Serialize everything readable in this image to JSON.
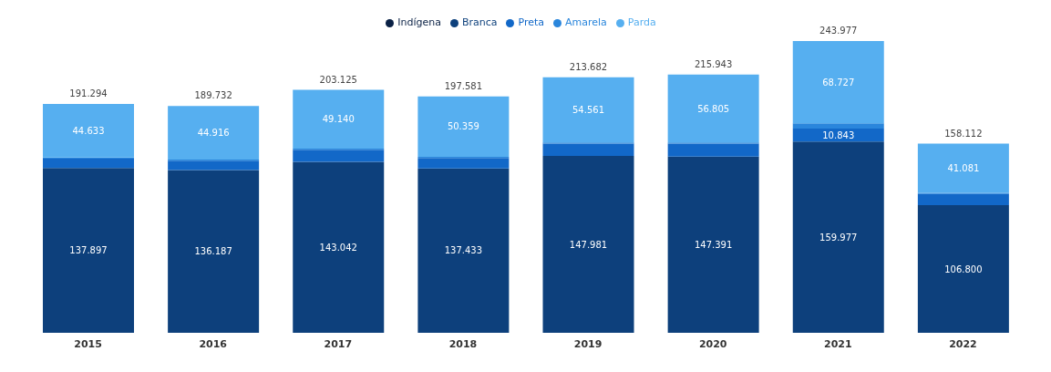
{
  "chart_data": {
    "type": "bar",
    "stacked": true,
    "categories": [
      "2015",
      "2016",
      "2017",
      "2018",
      "2019",
      "2020",
      "2021",
      "2022"
    ],
    "series": [
      {
        "name": "Indígena",
        "color": "#0a2145",
        "values": [
          null,
          null,
          null,
          null,
          null,
          null,
          null,
          null
        ]
      },
      {
        "name": "Branca",
        "color": "#0d407c",
        "values": [
          137897,
          136187,
          143042,
          137433,
          147981,
          147391,
          159977,
          106800
        ],
        "value_labels": [
          "137.897",
          "136.187",
          "143.042",
          "137.433",
          "147.981",
          "147.391",
          "159.977",
          "106.800"
        ]
      },
      {
        "name": "Preta",
        "color": "#1268c8",
        "values": [
          7764,
          7629,
          9943,
          8789,
          10140,
          10747,
          10843,
          9231
        ],
        "value_labels": [
          null,
          null,
          null,
          null,
          null,
          null,
          "10.843",
          null
        ]
      },
      {
        "name": "Amarela",
        "color": "#2a86dc",
        "values": [
          1000,
          1000,
          1000,
          1000,
          1000,
          1000,
          4430,
          1000
        ]
      },
      {
        "name": "Parda",
        "color": "#56aff0",
        "values": [
          44633,
          44916,
          49140,
          50359,
          54561,
          56805,
          68727,
          41081
        ],
        "value_labels": [
          "44.633",
          "44.916",
          "49.140",
          "50.359",
          "54.561",
          "56.805",
          "68.727",
          "41.081"
        ]
      }
    ],
    "totals": [
      "191.294",
      "189.732",
      "203.125",
      "197.581",
      "213.682",
      "215.943",
      "243.977",
      "158.112"
    ],
    "legend": "top",
    "grid": false
  }
}
